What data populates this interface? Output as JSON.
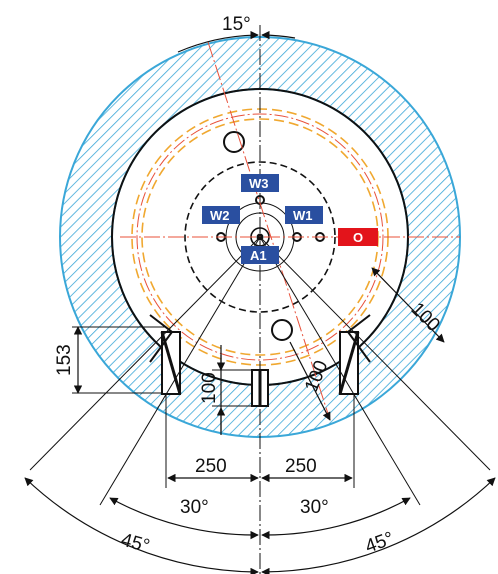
{
  "angles": {
    "top": "15°",
    "left_inner": "30°",
    "right_inner": "30°",
    "left_outer": "45°",
    "right_outer": "45°"
  },
  "dimensions": {
    "height_153": "153",
    "depth_100_left": "100",
    "depth_100_center": "100",
    "offset_100_right": "100",
    "width_250_left": "250",
    "width_250_right": "250"
  },
  "labels": {
    "w3": "W3",
    "w2": "W2",
    "w1": "W1",
    "a1": "A1",
    "o": "O"
  },
  "colors": {
    "hatch": "#3aa7d8",
    "label_fill": "#2a4fa0",
    "o_label_fill": "#e3141b",
    "centerline": "#e8503a",
    "bolt_circle": "#f0a830"
  }
}
